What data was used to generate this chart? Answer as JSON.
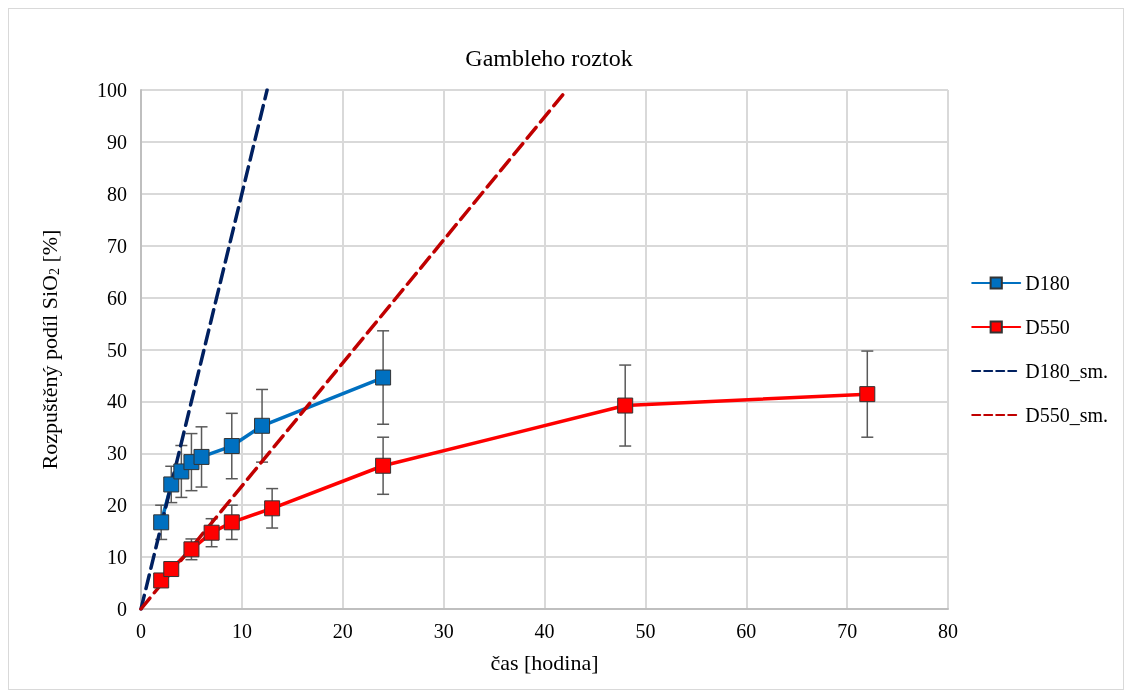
{
  "chart_data": {
    "type": "line",
    "title": "Gambleho roztok",
    "xlabel": "čas [hodina]",
    "ylabel": "Rozpuštěný podíl SiO$_{2}$ [%]",
    "xlim": [
      0,
      80
    ],
    "xticks": [
      0,
      10,
      20,
      30,
      40,
      50,
      60,
      70,
      80
    ],
    "ylim": [
      0,
      100
    ],
    "yticks": [
      0,
      10,
      20,
      30,
      40,
      50,
      60,
      70,
      80,
      90,
      100
    ],
    "grid": true,
    "legend": "right",
    "marker": "square",
    "line_style": "solid",
    "series": [
      {
        "name": "D180",
        "color": "#0070c0",
        "x": [
          2,
          3,
          4,
          5,
          6,
          9,
          12,
          24
        ],
        "values": [
          16.7,
          24,
          26.5,
          28.3,
          29.3,
          31.4,
          35.3,
          44.6
        ],
        "errors": [
          3.3,
          3.5,
          5,
          5.5,
          5.8,
          6.3,
          7,
          9
        ]
      },
      {
        "name": "D550",
        "color": "#ff0000",
        "x": [
          2,
          3,
          5,
          7,
          9,
          13,
          24,
          48,
          72
        ],
        "values": [
          5.5,
          7.7,
          11.5,
          14.7,
          16.7,
          19.4,
          27.6,
          39.2,
          41.4
        ],
        "errors": [
          null,
          null,
          2,
          2.7,
          3.3,
          3.8,
          5.5,
          7.8,
          8.3
        ]
      },
      {
        "name": "D180_sm.",
        "color": "#002060",
        "x": [
          0,
          12.5
        ],
        "values": [
          0,
          100
        ],
        "marker": "none",
        "line_style": "dashed"
      },
      {
        "name": "D550_sm.",
        "color": "#c00000",
        "x": [
          0,
          42.2
        ],
        "values": [
          0,
          100
        ],
        "marker": "none",
        "line_style": "dashed"
      }
    ]
  }
}
